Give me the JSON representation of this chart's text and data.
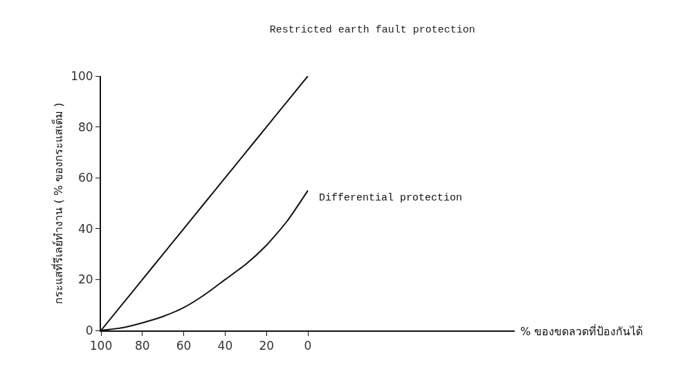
{
  "chart_data": {
    "type": "line",
    "title": "Restricted earth fault protection",
    "xlabel": "% ของขดลวดที่ป้องกันได้",
    "ylabel": "กระแสที่รีเลย์ทำงาน ( % ของกระแสเต็ม )",
    "x": [
      100,
      90,
      80,
      70,
      60,
      50,
      40,
      30,
      20,
      10,
      0
    ],
    "series": [
      {
        "color": "#111111",
        "values": [
          0,
          10,
          20,
          30,
          40,
          50,
          60,
          70,
          80,
          90,
          100
        ]
      },
      {
        "name": "Differential protection",
        "color": "#111111",
        "values": [
          0,
          1,
          3,
          5.5,
          9,
          14,
          20,
          26,
          33.5,
          43,
          55
        ]
      }
    ],
    "xlim": [
      100,
      -100
    ],
    "xticks": [
      100,
      80,
      60,
      40,
      20,
      0
    ],
    "ylim": [
      0,
      100
    ],
    "yticks": [
      0,
      20,
      40,
      60,
      80,
      100
    ],
    "legend": false,
    "marker": "none",
    "line_style": "solid"
  }
}
